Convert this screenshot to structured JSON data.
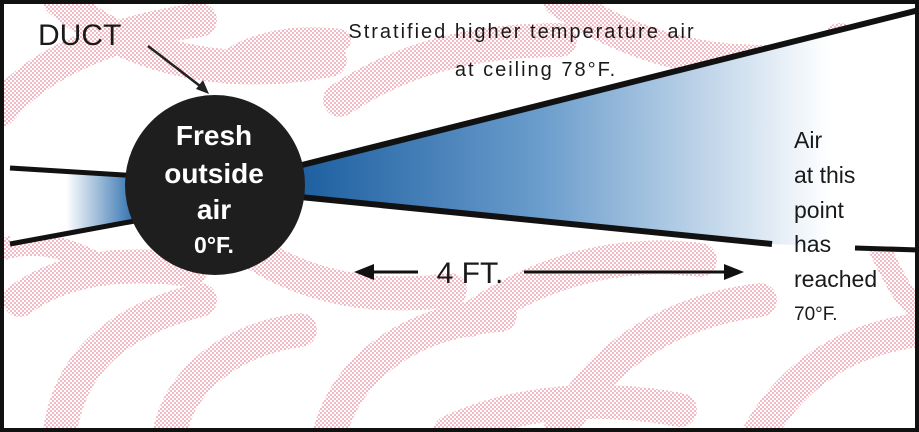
{
  "colors": {
    "pattern": "#e8889a",
    "background": "#ffffff",
    "duct": "#1e1e1e",
    "air_cold": "#1d5fa0",
    "air_warm": "#ffffff",
    "frame": "#111111"
  },
  "labels": {
    "duct": "DUCT",
    "stratified_line1": "Stratified higher temperature air",
    "stratified_line2": "at ceiling 78°F.",
    "circle_line1": "Fresh",
    "circle_line2": "outside",
    "circle_line3": "air",
    "circle_line4": "0°F.",
    "distance": "4 FT.",
    "side_line1": "Air",
    "side_line2": "at this",
    "side_line3": "point",
    "side_line4": "has",
    "side_line5": "reached",
    "side_line6": "70°F."
  }
}
